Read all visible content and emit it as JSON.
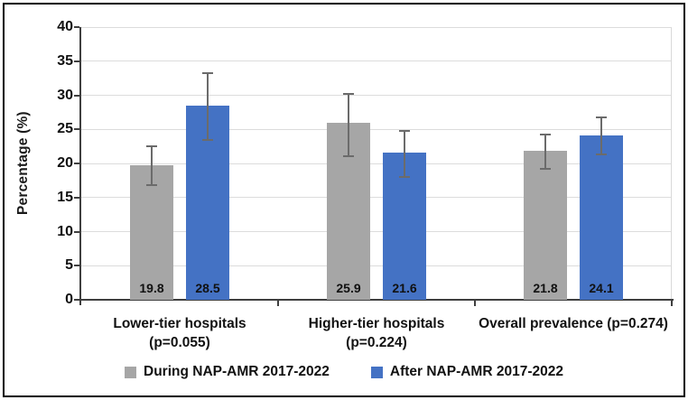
{
  "figure": {
    "frame_border_color": "#000000",
    "background_color": "#ffffff",
    "gridline_color": "#dcdcdc",
    "axis_color": "#3f3f3f",
    "error_bar_color": "#6b6b6b"
  },
  "chart_data": {
    "type": "bar",
    "title": "",
    "xlabel": "",
    "ylabel": "Percentage (%)",
    "ylim": [
      0,
      40
    ],
    "ytick_step": 5,
    "yticks": [
      0,
      5,
      10,
      15,
      20,
      25,
      30,
      35,
      40
    ],
    "grid": "horizontal",
    "legend_position": "bottom",
    "value_labels_shown": true,
    "categories": [
      {
        "lines": [
          "Lower-tier hospitals",
          "(p=0.055)"
        ]
      },
      {
        "lines": [
          "Higher-tier hospitals",
          "(p=0.224)"
        ]
      },
      {
        "lines": [
          "Overall prevalence (p=0.274)"
        ]
      }
    ],
    "series": [
      {
        "name": "During NAP-AMR 2017-2022",
        "color": "#A6A6A6",
        "values": [
          19.8,
          25.9,
          21.8
        ],
        "error_upper": [
          2.7,
          4.3,
          2.4
        ],
        "error_lower": [
          3.0,
          4.8,
          2.6
        ]
      },
      {
        "name": "After NAP-AMR 2017-2022",
        "color": "#4472C4",
        "values": [
          28.5,
          21.6,
          24.1
        ],
        "error_upper": [
          4.8,
          3.2,
          2.7
        ],
        "error_lower": [
          5.0,
          3.6,
          2.8
        ]
      }
    ]
  }
}
